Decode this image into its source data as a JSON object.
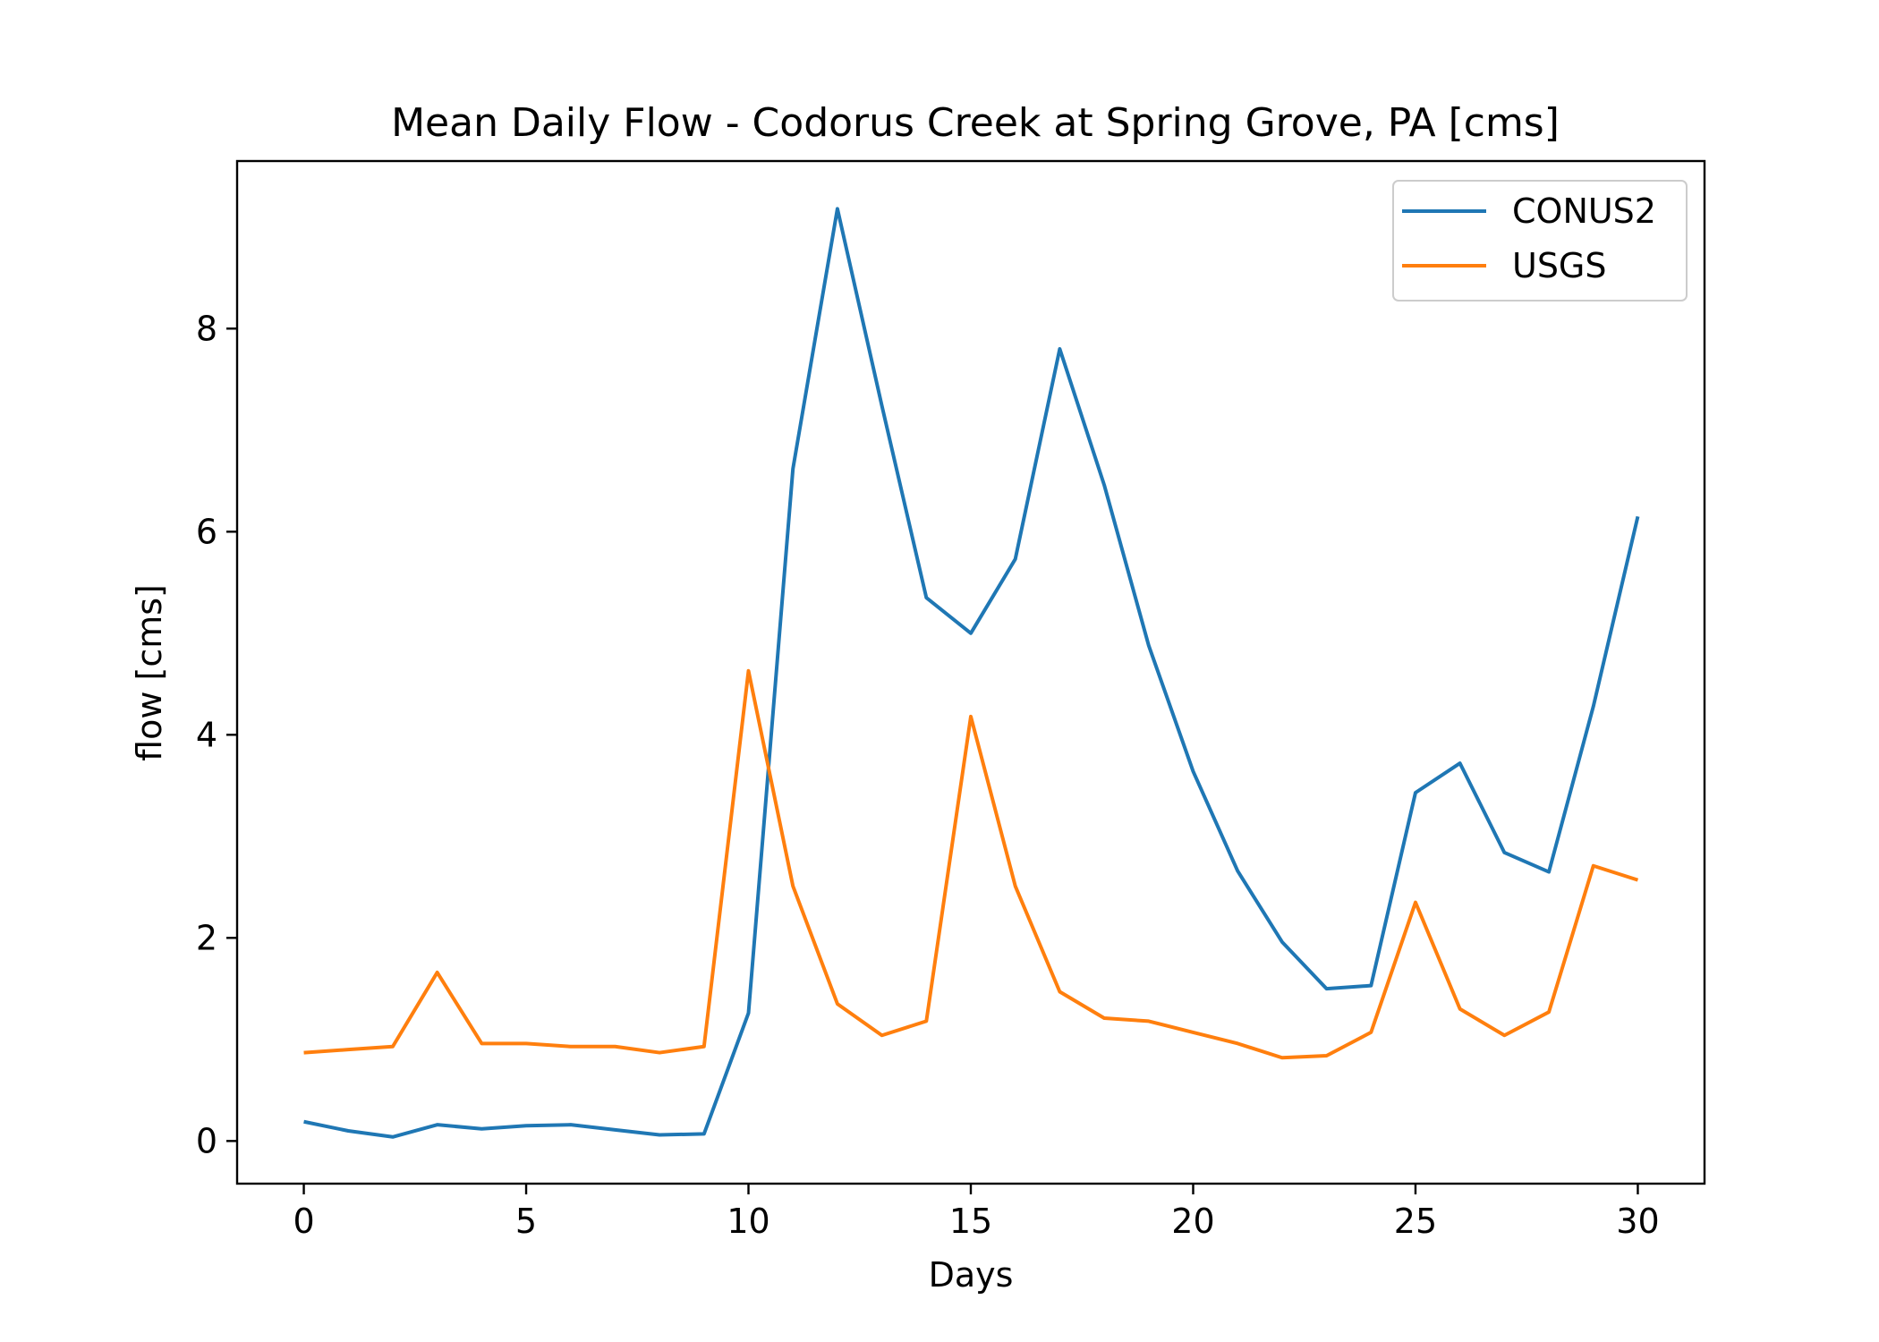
{
  "chart_data": {
    "type": "line",
    "title": "Mean Daily Flow - Codorus Creek at Spring Grove, PA [cms]",
    "xlabel": "Days",
    "ylabel": "flow [cms]",
    "xlim": [
      -1.5,
      31.5
    ],
    "ylim": [
      -0.42,
      9.65
    ],
    "xticks": [
      0,
      5,
      10,
      15,
      20,
      25,
      30
    ],
    "yticks": [
      0,
      2,
      4,
      6,
      8
    ],
    "grid": false,
    "legend_position": "top-right",
    "x": [
      0,
      1,
      2,
      3,
      4,
      5,
      6,
      7,
      8,
      9,
      10,
      11,
      12,
      13,
      14,
      15,
      16,
      17,
      18,
      19,
      20,
      21,
      22,
      23,
      24,
      25,
      26,
      27,
      28,
      29,
      30
    ],
    "series": [
      {
        "name": "CONUS2",
        "color": "#1f77b4",
        "values": [
          0.19,
          0.1,
          0.04,
          0.16,
          0.12,
          0.15,
          0.16,
          0.11,
          0.06,
          0.07,
          1.26,
          6.62,
          9.18,
          7.24,
          5.35,
          5.0,
          5.73,
          7.8,
          6.46,
          4.88,
          3.64,
          2.66,
          1.96,
          1.5,
          1.53,
          3.43,
          3.72,
          2.84,
          2.65,
          4.28,
          6.15
        ]
      },
      {
        "name": "USGS",
        "color": "#ff7f0e",
        "values": [
          0.87,
          0.9,
          0.93,
          1.66,
          0.96,
          0.96,
          0.93,
          0.93,
          0.87,
          0.93,
          4.63,
          2.51,
          1.35,
          1.04,
          1.18,
          4.18,
          2.51,
          1.47,
          1.21,
          1.18,
          1.07,
          0.96,
          0.82,
          0.84,
          1.07,
          2.35,
          1.3,
          1.04,
          1.27,
          2.71,
          2.57
        ]
      }
    ]
  }
}
